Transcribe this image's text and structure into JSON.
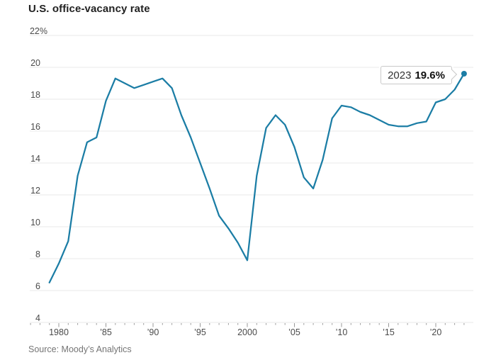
{
  "header": {
    "title": "U.S. office-vacancy rate"
  },
  "footer": {
    "source": "Source: Moody’s Analytics"
  },
  "annotation": {
    "year": "2023",
    "value": "19.6%"
  },
  "colors": {
    "line": "#1b7da5",
    "grid": "#e9e9e9",
    "tick": "#999999",
    "axis_label": "#4a4a4a",
    "title": "#222222",
    "source": "#757575",
    "callout_border": "#c9c9c9"
  },
  "chart_data": {
    "type": "line",
    "title": "U.S. office-vacancy rate",
    "xlabel": "",
    "ylabel": "",
    "ylim": [
      4,
      22
    ],
    "grid": "horizontal",
    "legend": "none",
    "yticks": {
      "values": [
        22,
        20,
        18,
        16,
        14,
        12,
        10,
        8,
        6,
        4
      ],
      "labels": [
        "22%",
        "20",
        "18",
        "16",
        "14",
        "12",
        "10",
        "8",
        "6",
        "4"
      ]
    },
    "xticks_major": {
      "values": [
        1980,
        1985,
        1990,
        1995,
        2000,
        2005,
        2010,
        2015,
        2020
      ],
      "labels": [
        "1980",
        "’85",
        "’90",
        "’95",
        "2000",
        "’05",
        "’10",
        "’15",
        "’20"
      ]
    },
    "xticks_minor": {
      "start": 1977,
      "end": 2023,
      "step": 1
    },
    "series": [
      {
        "name": "U.S. office-vacancy rate",
        "x": [
          1979,
          1980,
          1981,
          1982,
          1983,
          1984,
          1985,
          1986,
          1987,
          1988,
          1989,
          1990,
          1991,
          1992,
          1993,
          1994,
          1995,
          1996,
          1997,
          1998,
          1999,
          2000,
          2001,
          2002,
          2003,
          2004,
          2005,
          2006,
          2007,
          2008,
          2009,
          2010,
          2011,
          2012,
          2013,
          2014,
          2015,
          2016,
          2017,
          2018,
          2019,
          2020,
          2021,
          2022,
          2023
        ],
        "values": [
          6.5,
          7.7,
          9.1,
          13.2,
          15.3,
          15.6,
          17.9,
          19.3,
          19.0,
          18.7,
          18.9,
          19.1,
          19.3,
          18.7,
          17.0,
          15.6,
          14.0,
          12.4,
          10.7,
          9.9,
          9.0,
          7.9,
          13.2,
          16.2,
          17.0,
          16.4,
          15.0,
          13.1,
          12.4,
          14.2,
          16.8,
          17.6,
          17.5,
          17.2,
          17.0,
          16.7,
          16.4,
          16.3,
          16.3,
          16.5,
          16.6,
          17.8,
          18.0,
          18.6,
          19.6
        ]
      }
    ],
    "end_dot": true,
    "annotation": {
      "x": 2023,
      "y": 19.6,
      "text_year": "2023",
      "text_value": "19.6%"
    }
  }
}
